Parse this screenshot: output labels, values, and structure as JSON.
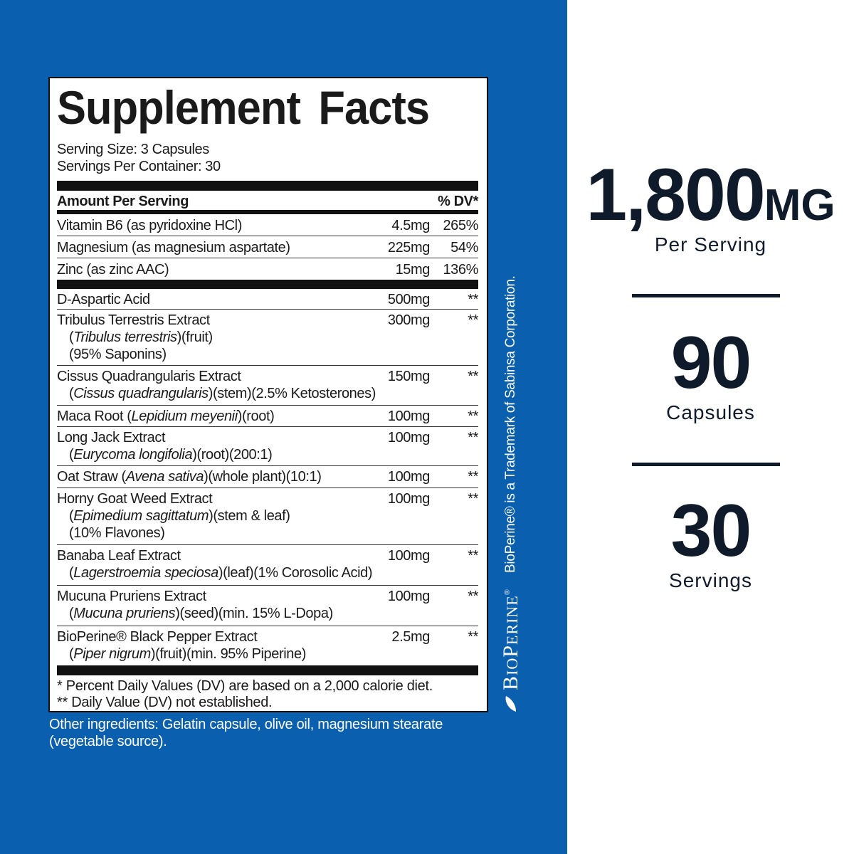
{
  "label": {
    "title": "Supplement Facts",
    "serving_size": "Serving Size: 3 Capsules",
    "servings_per_container": "Servings Per Container: 30",
    "amount_header": "Amount Per Serving",
    "dv_header": "% DV*",
    "vitamins": [
      {
        "name": "Vitamin B6 (as pyridoxine HCl)",
        "amount": "4.5mg",
        "dv": "265%"
      },
      {
        "name": "Magnesium (as magnesium aspartate)",
        "amount": "225mg",
        "dv": "54%"
      },
      {
        "name": "Zinc (as zinc AAC)",
        "amount": "15mg",
        "dv": "136%"
      }
    ],
    "ingredients": [
      {
        "name": "D-Aspartic Acid",
        "amount": "500mg",
        "dv": "**"
      },
      {
        "name": "Tribulus Terrestris Extract",
        "latin": "Tribulus terrestris",
        "after": "(fruit)",
        "extra": "(95% Saponins)",
        "amount": "300mg",
        "dv": "**"
      },
      {
        "name": "Cissus Quadrangularis Extract",
        "latin": "Cissus quadrangularis",
        "after": "(stem)(2.5% Ketosterones)",
        "amount": "150mg",
        "dv": "**"
      },
      {
        "name": "Maca Root (",
        "latin": "Lepidium meyenii",
        "after": ")(root)",
        "amount": "100mg",
        "dv": "**"
      },
      {
        "name": "Long Jack Extract",
        "latin": "Eurycoma longifolia",
        "after": "(root)(200:1)",
        "amount": "100mg",
        "dv": "**"
      },
      {
        "name": "Oat Straw (",
        "latin": "Avena sativa",
        "after": ")(whole plant)(10:1)",
        "amount": "100mg",
        "dv": "**"
      },
      {
        "name": "Horny Goat Weed Extract",
        "latin": "Epimedium sagittatum",
        "after": "(stem & leaf)",
        "extra": "(10% Flavones)",
        "amount": "100mg",
        "dv": "**"
      },
      {
        "name": "Banaba Leaf Extract",
        "latin": "Lagerstroemia speciosa",
        "after": "(leaf)(1% Corosolic Acid)",
        "amount": "100mg",
        "dv": "**"
      },
      {
        "name": "Mucuna Pruriens Extract",
        "latin": "Mucuna pruriens",
        "after": "(seed)(min. 15% L-Dopa)",
        "amount": "100mg",
        "dv": "**"
      },
      {
        "name": "BioPerine® Black Pepper Extract",
        "latin": "Piper nigrum",
        "after": "(fruit)(min. 95% Piperine)",
        "amount": "2.5mg",
        "dv": "**"
      }
    ],
    "footnote1": "* Percent Daily Values (DV) are based on a 2,000 calorie diet.",
    "footnote2": "** Daily Value (DV) not established."
  },
  "other_ingredients": "Other ingredients: Gelatin capsule, olive oil, magnesium stearate (vegetable source).",
  "trademark": {
    "logo": "BIOPERINE",
    "notice": "BioPerine® is a Trademark of Sabinsa Corporation."
  },
  "stats": [
    {
      "value": "1,800",
      "unit": "MG",
      "label": "Per Serving"
    },
    {
      "value": "90",
      "label": "Capsules"
    },
    {
      "value": "30",
      "label": "Servings"
    }
  ],
  "colors": {
    "blue": "#0a5fae",
    "navy": "#0f1a2a"
  }
}
